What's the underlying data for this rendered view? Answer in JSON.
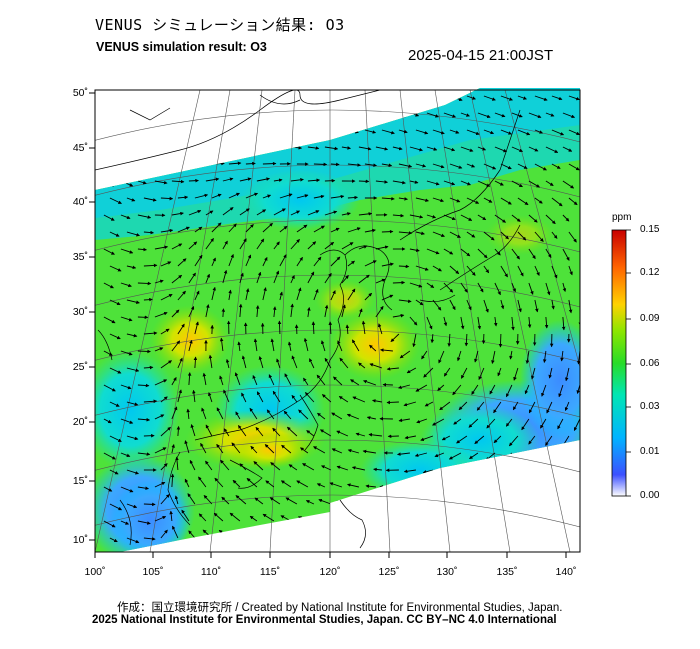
{
  "header": {
    "title_ja": "VENUS シミュレーション結果: O3",
    "title_en": "VENUS simulation result: O3",
    "timestamp": "2025-04-15 21:00JST"
  },
  "axes": {
    "lat_labels": [
      "50˚",
      "45˚",
      "40˚",
      "35˚",
      "30˚",
      "25˚",
      "20˚",
      "15˚",
      "10˚"
    ],
    "lon_labels": [
      "100˚",
      "105˚",
      "110˚",
      "115˚",
      "120˚",
      "125˚",
      "130˚",
      "135˚",
      "140˚"
    ]
  },
  "colorbar": {
    "unit": "ppm",
    "ticks": [
      "0.15",
      "0.12",
      "0.09",
      "0.06",
      "0.03",
      "0.01",
      "0.00"
    ],
    "colors": [
      "#ffffff",
      "#1e3cff",
      "#00c8ff",
      "#00e640",
      "#c8e600",
      "#ffc800",
      "#ff3200",
      "#c00000"
    ]
  },
  "credits": {
    "line1": "作成：国立環境研究所 / Created by National Institute for Environmental Studies, Japan.",
    "line2": "2025 National Institute for Environmental Studies, Japan. CC BY–NC 4.0 International"
  }
}
